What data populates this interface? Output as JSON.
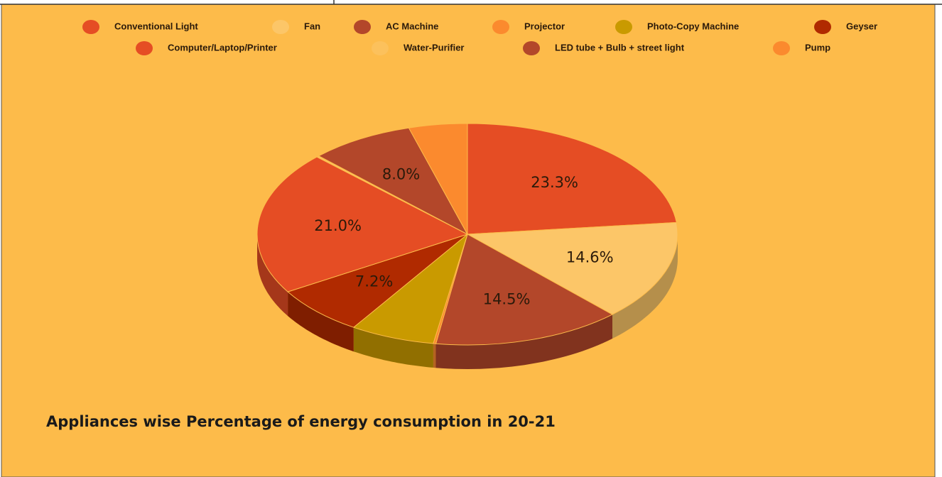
{
  "chart_data": {
    "type": "pie",
    "title": "Appliances wise Percentage of energy consumption in 20-21",
    "categories": [
      "Conventional Light",
      "Fan",
      "AC Machine",
      "Projector",
      "Photo-Copy Machine",
      "Geyser",
      "Computer/Laptop/Printer",
      "Water-Purifier",
      "LED tube + Bulb + street light",
      "Pump"
    ],
    "values": [
      23.3,
      14.6,
      14.5,
      0.2,
      6.5,
      7.2,
      21.0,
      0.2,
      8.0,
      4.5
    ],
    "value_labels": [
      "23.3%",
      "14.6%",
      "14.5%",
      null,
      null,
      "7.2%",
      "21.0%",
      null,
      "8.0%",
      null
    ],
    "colors": [
      "#e54d24",
      "#fcc668",
      "#b3472a",
      "#fb8a2e",
      "#c99a00",
      "#b02a00",
      "#e54d24",
      "#fcc15c",
      "#b3472a",
      "#fb8a2e"
    ]
  }
}
